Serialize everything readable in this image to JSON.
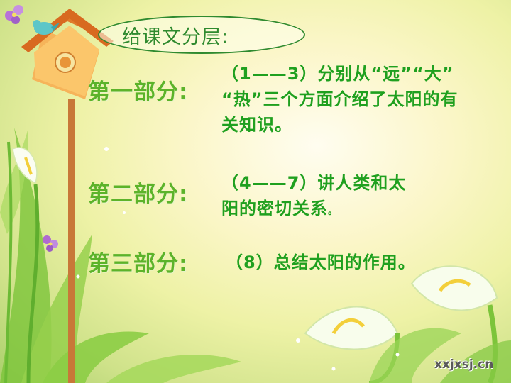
{
  "slide": {
    "title": "给课文分层:",
    "parts": [
      {
        "label": "第一部分:",
        "lines": [
          "（1——3）分别从“远”“大”",
          "“热”三个方面介绍了太阳的有",
          "关知识。"
        ]
      },
      {
        "label": "第二部分:",
        "lines": [
          "（4——7）讲人类和太",
          "阳的密切关系"
        ],
        "tail": "。"
      },
      {
        "label": "第三部分:",
        "lines": [
          "（8）总结太阳的作用。"
        ]
      }
    ],
    "watermark": "xxjxsj.cn"
  },
  "colors": {
    "label": "#5cb32a",
    "text": "#1fa01f",
    "title": "#2f8a2f"
  },
  "icons": [
    "birdhouse-icon",
    "bird-icon",
    "calla-lily-icon",
    "flower-icon",
    "leaf-icon"
  ]
}
